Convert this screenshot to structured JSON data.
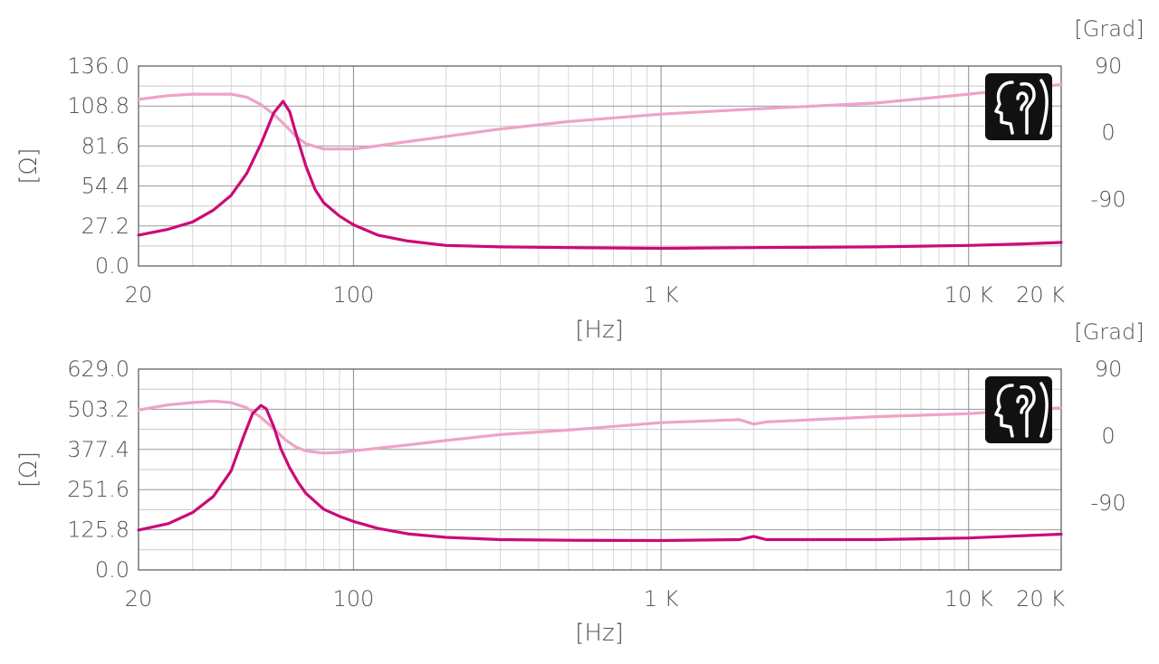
{
  "chart_data": [
    {
      "type": "line",
      "xscale": "log",
      "xlim": [
        20,
        20000
      ],
      "ylim": [
        0,
        136
      ],
      "y2lim": [
        -180,
        90
      ],
      "xlabel": "[Hz]",
      "ylabel": "[Ω]",
      "y2label": "[Grad]",
      "x_ticks": [
        {
          "value": 20,
          "label": "20"
        },
        {
          "value": 100,
          "label": "100"
        },
        {
          "value": 1000,
          "label": "1 K"
        },
        {
          "value": 10000,
          "label": "10 K"
        },
        {
          "value": 20000,
          "label": "20 K"
        }
      ],
      "y_ticks": [
        "0.0",
        "27.2",
        "54.4",
        "81.6",
        "108.8",
        "136.0"
      ],
      "y2_ticks": [
        "90",
        "0",
        "-90"
      ],
      "grid": true,
      "icon": "head-listening-icon",
      "colors": {
        "impedance": "#cc0a78",
        "phase": "#eda3c8"
      },
      "series": [
        {
          "key": "impedance",
          "axis": "left",
          "x": [
            20,
            25,
            30,
            35,
            40,
            45,
            50,
            55,
            59,
            62,
            65,
            70,
            75,
            80,
            90,
            100,
            120,
            150,
            200,
            300,
            500,
            1000,
            2000,
            5000,
            10000,
            15000,
            20000
          ],
          "y": [
            21,
            25,
            30,
            38,
            48,
            63,
            83,
            104,
            112,
            105,
            90,
            68,
            52,
            43,
            34,
            28,
            21,
            17,
            14,
            13,
            12.5,
            12,
            12.5,
            13,
            14,
            15,
            16
          ]
        },
        {
          "key": "phase",
          "axis": "right",
          "x": [
            20,
            25,
            30,
            35,
            40,
            45,
            50,
            55,
            60,
            65,
            70,
            80,
            90,
            100,
            110,
            150,
            200,
            300,
            500,
            1000,
            2000,
            5000,
            10000,
            15000,
            20000
          ],
          "y": [
            45,
            50,
            52,
            52,
            52,
            48,
            38,
            25,
            10,
            -5,
            -15,
            -22,
            -22,
            -22,
            -20,
            -12,
            -5,
            5,
            15,
            25,
            32,
            40,
            52,
            60,
            65
          ]
        }
      ]
    },
    {
      "type": "line",
      "xscale": "log",
      "xlim": [
        20,
        20000
      ],
      "ylim": [
        0,
        629
      ],
      "y2lim": [
        -180,
        90
      ],
      "xlabel": "[Hz]",
      "ylabel": "[Ω]",
      "y2label": "[Grad]",
      "x_ticks": [
        {
          "value": 20,
          "label": "20"
        },
        {
          "value": 100,
          "label": "100"
        },
        {
          "value": 1000,
          "label": "1 K"
        },
        {
          "value": 10000,
          "label": "10 K"
        },
        {
          "value": 20000,
          "label": "20 K"
        }
      ],
      "y_ticks": [
        "0.0",
        "125.8",
        "251.6",
        "377.4",
        "503.2",
        "629.0"
      ],
      "y2_ticks": [
        "90",
        "0",
        "-90"
      ],
      "grid": true,
      "icon": "head-listening-icon",
      "colors": {
        "impedance": "#cc0a78",
        "phase": "#eda3c8"
      },
      "series": [
        {
          "key": "impedance",
          "axis": "left",
          "x": [
            20,
            25,
            30,
            35,
            40,
            44,
            47,
            50,
            52,
            55,
            58,
            62,
            66,
            70,
            80,
            90,
            100,
            120,
            150,
            200,
            300,
            500,
            1000,
            1800,
            2000,
            2200,
            5000,
            10000,
            20000
          ],
          "y": [
            125,
            145,
            180,
            230,
            310,
            420,
            490,
            515,
            505,
            450,
            380,
            320,
            275,
            240,
            190,
            168,
            152,
            130,
            113,
            102,
            95,
            93,
            92,
            95,
            105,
            95,
            95,
            100,
            112
          ]
        },
        {
          "key": "phase",
          "axis": "right",
          "x": [
            20,
            25,
            30,
            35,
            40,
            45,
            50,
            55,
            60,
            65,
            70,
            80,
            90,
            100,
            110,
            150,
            200,
            300,
            500,
            1000,
            1800,
            2000,
            2200,
            5000,
            10000,
            15000,
            20000
          ],
          "y": [
            35,
            42,
            45,
            47,
            45,
            38,
            25,
            10,
            -5,
            -15,
            -20,
            -23,
            -22,
            -20,
            -18,
            -12,
            -6,
            2,
            8,
            18,
            22,
            16,
            19,
            26,
            30,
            35,
            38
          ]
        }
      ]
    }
  ]
}
